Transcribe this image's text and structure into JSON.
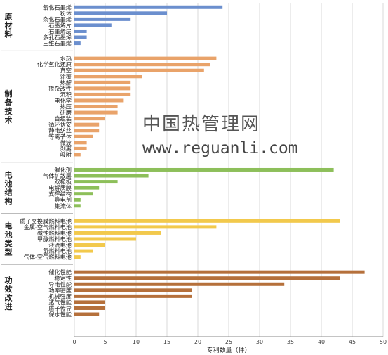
{
  "watermark": {
    "title": "中国热管理网",
    "url": "www.reguanli.com"
  },
  "chart_data": {
    "type": "bar",
    "orientation": "horizontal",
    "xlabel": "专利数量（件）",
    "xlim": [
      0,
      50
    ],
    "xticks": [
      0,
      5,
      10,
      15,
      20,
      25,
      30,
      35,
      40,
      45,
      50
    ],
    "grid": "vertical",
    "groups": [
      {
        "name": "原材料",
        "color": "#6b8fce",
        "categories": [
          "氧化石墨烯",
          "粉体",
          "杂化石墨烯",
          "石墨烯片",
          "石墨烯层",
          "多孔石墨烯",
          "三维石墨烯"
        ],
        "values": [
          24,
          15,
          9,
          6,
          2,
          2,
          1
        ]
      },
      {
        "name": "制备技术",
        "color": "#e9a36a",
        "categories": [
          "水热",
          "化学氧化还原",
          "真空",
          "涂覆",
          "热解",
          "掺杂改性",
          "沉积",
          "电化学",
          "热压",
          "研磨",
          "自组装",
          "循环伏安",
          "静电纺丝",
          "等离子体",
          "微波",
          "剥离",
          "吸附"
        ],
        "values": [
          23,
          22,
          21,
          11,
          9,
          9,
          9,
          8,
          7,
          7,
          5,
          4,
          4,
          3,
          2,
          2,
          1
        ]
      },
      {
        "name": "电池结构",
        "color": "#8dbf5a",
        "categories": [
          "催化剂",
          "气体扩散层",
          "双极板",
          "电解质膜",
          "支撑结构",
          "导电剂",
          "集流体"
        ],
        "values": [
          42,
          12,
          7,
          4,
          3,
          1,
          1
        ]
      },
      {
        "name": "电池类型",
        "color": "#f2c94c",
        "categories": [
          "质子交换膜燃料电池",
          "金属-空气燃料电池",
          "碱性燃料电池",
          "甲醇燃料电池",
          "液流电池",
          "氢燃料电池",
          "气体-空气燃料电池"
        ],
        "values": [
          43,
          23,
          14,
          10,
          5,
          3,
          1
        ]
      },
      {
        "name": "功效改进",
        "color": "#b5703b",
        "categories": [
          "催化性能",
          "稳定性",
          "导电性能",
          "功率密度",
          "机械强度",
          "透气性能",
          "质子传导",
          "保水性能"
        ],
        "values": [
          47,
          43,
          34,
          19,
          19,
          5,
          5,
          4
        ]
      }
    ]
  }
}
